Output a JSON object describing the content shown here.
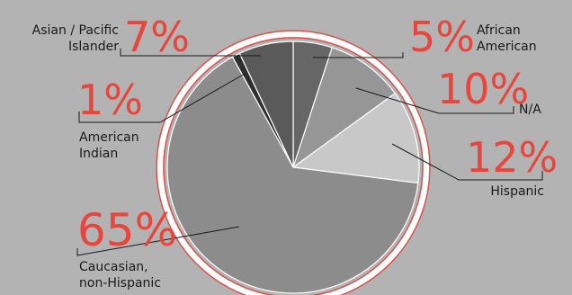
{
  "chart_data": {
    "type": "pie",
    "title": "",
    "slices": [
      {
        "label": "African American",
        "value": 5,
        "display": "5%",
        "label_lines": [
          "African",
          "American"
        ],
        "color": "#666666"
      },
      {
        "label": "N/A",
        "value": 10,
        "display": "10%",
        "label_lines": [
          "N/A"
        ],
        "color": "#969696"
      },
      {
        "label": "Hispanic",
        "value": 12,
        "display": "12%",
        "label_lines": [
          "Hispanic"
        ],
        "color": "#c8c8c8"
      },
      {
        "label": "Caucasian, non-Hispanic",
        "value": 65,
        "display": "65%",
        "label_lines": [
          "Caucasian,",
          "non-Hispanic"
        ],
        "color": "#8c8c8c"
      },
      {
        "label": "American Indian",
        "value": 1,
        "display": "1%",
        "label_lines": [
          "American",
          "Indian"
        ],
        "color": "#2e2e2e"
      },
      {
        "label": "Asian / Pacific Islander",
        "value": 7,
        "display": "7%",
        "label_lines": [
          "Asian / Pacific",
          "Islander"
        ],
        "color": "#5a5a5a"
      }
    ],
    "colors": {
      "background": "#b3b3b3",
      "accent": "#e8453c",
      "ring": "#ffffff",
      "text": "#1a1a1a"
    }
  }
}
